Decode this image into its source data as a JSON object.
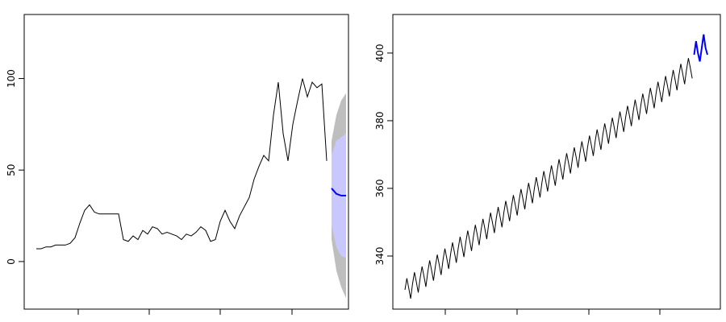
{
  "chart_data": [
    {
      "type": "line",
      "color": "#000000",
      "values": [
        7,
        7,
        8,
        8,
        9,
        9,
        9,
        10,
        13,
        21,
        28,
        31,
        27,
        26,
        26,
        26,
        26,
        26,
        12,
        11,
        14,
        12,
        17,
        15,
        19,
        18,
        15,
        16,
        15,
        14,
        12,
        15,
        14,
        16,
        19,
        17,
        11,
        12,
        22,
        28,
        22,
        18,
        25,
        30,
        35,
        45,
        52,
        58,
        55,
        80,
        98,
        70,
        55,
        75,
        88,
        100,
        90,
        98,
        95,
        97,
        55
      ],
      "forecast": {
        "color": "#0000ff",
        "values": [
          40,
          37,
          36,
          36
        ],
        "lower80": [
          20,
          8,
          3,
          2
        ],
        "upper80": [
          58,
          66,
          68,
          70
        ],
        "color80": "#c8c8ff",
        "lower95": [
          12,
          -5,
          -14,
          -20
        ],
        "upper95": [
          66,
          80,
          88,
          92
        ],
        "color95": "#bebebe"
      },
      "ylim": [
        -26,
        135
      ],
      "yticks": [
        0,
        50,
        100
      ]
    },
    {
      "type": "line",
      "color": "#000000",
      "values": [
        330.0,
        333.4,
        330.5,
        327.4,
        331.8,
        335.2,
        332.3,
        329.2,
        333.5,
        336.9,
        334.0,
        330.9,
        335.3,
        338.7,
        335.8,
        332.7,
        337.0,
        340.4,
        337.5,
        334.4,
        338.8,
        342.2,
        339.3,
        336.2,
        340.6,
        344.0,
        341.1,
        338.0,
        342.3,
        345.7,
        342.8,
        339.7,
        344.1,
        347.5,
        344.6,
        341.5,
        345.8,
        349.2,
        346.3,
        343.2,
        347.6,
        351.0,
        348.1,
        345.0,
        349.4,
        352.8,
        349.9,
        346.8,
        351.1,
        354.5,
        351.6,
        348.5,
        352.9,
        356.3,
        353.4,
        350.3,
        354.6,
        358.0,
        355.1,
        352.0,
        356.4,
        359.8,
        356.9,
        353.8,
        358.2,
        361.6,
        358.7,
        355.6,
        359.9,
        363.3,
        360.4,
        357.3,
        361.7,
        365.1,
        362.2,
        359.1,
        363.4,
        366.8,
        363.9,
        360.8,
        365.2,
        368.6,
        365.7,
        362.6,
        367.0,
        370.4,
        367.5,
        364.4,
        368.7,
        372.1,
        369.2,
        366.1,
        370.5,
        373.9,
        371.0,
        367.9,
        372.2,
        375.6,
        372.7,
        369.6,
        374.0,
        377.4,
        374.5,
        371.4,
        375.8,
        379.2,
        376.3,
        373.2,
        377.5,
        380.9,
        378.0,
        374.9,
        379.3,
        382.7,
        379.8,
        376.7,
        381.0,
        384.4,
        381.5,
        378.4,
        382.8,
        386.2,
        383.3,
        380.2,
        384.6,
        388.0,
        385.1,
        382.0,
        386.3,
        389.7,
        386.8,
        383.7,
        388.1,
        391.5,
        388.6,
        385.5,
        389.8,
        393.2,
        390.3,
        387.2,
        391.6,
        395.0,
        392.1,
        389.0,
        393.4,
        396.8,
        393.9,
        390.8,
        395.1,
        398.5,
        395.6,
        392.5
      ],
      "forecast": {
        "color": "#0000ff",
        "values": [
          399.5,
          403.5,
          400.0,
          397.5,
          401.5,
          405.5,
          401.5,
          399.5
        ]
      },
      "ylim": [
        324.3,
        411.4
      ],
      "yticks": [
        340,
        360,
        380,
        400
      ]
    }
  ]
}
